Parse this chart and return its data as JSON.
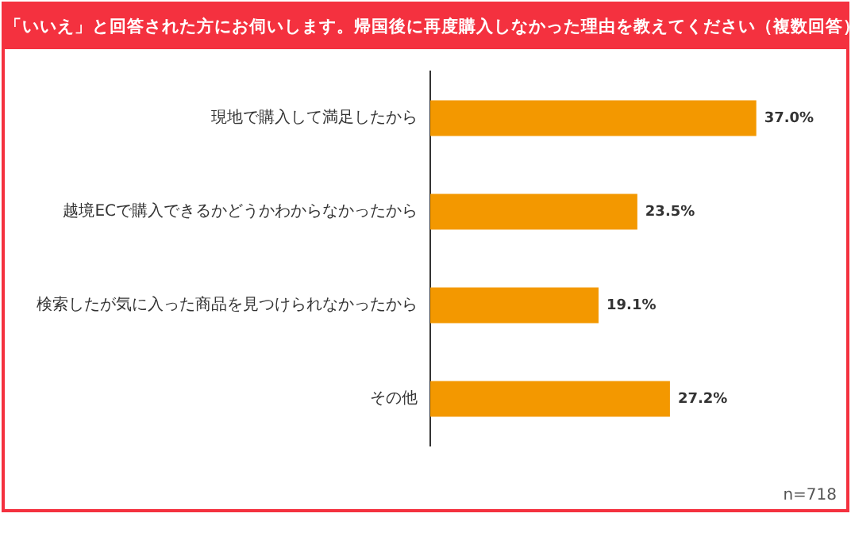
{
  "chart_data": {
    "type": "bar",
    "orientation": "horizontal",
    "title": "「いいえ」と回答された方にお伺いします。帰国後に再度購入しなかった理由を教えてください（複数回答）",
    "categories": [
      "現地で購入して満足したから",
      "越境ECで購入できるかどうかわからなかったから",
      "検索したが気に入った商品を見つけられなかったから",
      "その他"
    ],
    "values": [
      37.0,
      23.5,
      19.1,
      27.2
    ],
    "color": "#f39800",
    "value_labels": [
      "37.0%",
      "23.5%",
      "19.1%",
      "27.2%"
    ],
    "tick_labels": "y",
    "annotations": [
      "n=718"
    ]
  }
}
